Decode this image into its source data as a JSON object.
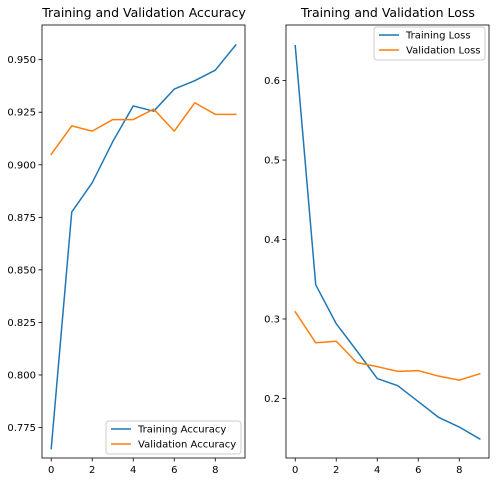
{
  "colors": {
    "training": "#1f77b4",
    "validation": "#ff7f0e",
    "axes": "#000000",
    "legend_border": "#cccccc"
  },
  "chart_data": [
    {
      "type": "line",
      "title": "Training and Validation Accuracy",
      "xlabel": "",
      "ylabel": "",
      "x": [
        0,
        1,
        2,
        3,
        4,
        5,
        6,
        7,
        8,
        9
      ],
      "xlim": [
        -0.45,
        9.45
      ],
      "ylim": [
        0.7605,
        0.9665
      ],
      "xticks": [
        0,
        2,
        4,
        6,
        8
      ],
      "xtick_labels": [
        "0",
        "2",
        "4",
        "6",
        "8"
      ],
      "yticks": [
        0.775,
        0.8,
        0.825,
        0.85,
        0.875,
        0.9,
        0.925,
        0.95
      ],
      "ytick_labels": [
        "0.775",
        "0.800",
        "0.825",
        "0.850",
        "0.875",
        "0.900",
        "0.925",
        "0.950"
      ],
      "legend_position": "lower right",
      "grid": false,
      "series": [
        {
          "name": "Training Accuracy",
          "color": "#1f77b4",
          "values": [
            0.765,
            0.8775,
            0.8915,
            0.911,
            0.928,
            0.9255,
            0.936,
            0.94,
            0.945,
            0.957
          ]
        },
        {
          "name": "Validation Accuracy",
          "color": "#ff7f0e",
          "values": [
            0.905,
            0.9185,
            0.916,
            0.9215,
            0.9215,
            0.9265,
            0.916,
            0.9295,
            0.924,
            0.924
          ]
        }
      ]
    },
    {
      "type": "line",
      "title": "Training and Validation Loss",
      "xlabel": "",
      "ylabel": "",
      "x": [
        0,
        1,
        2,
        3,
        4,
        5,
        6,
        7,
        8,
        9
      ],
      "xlim": [
        -0.45,
        9.45
      ],
      "ylim": [
        0.125,
        0.67
      ],
      "xticks": [
        0,
        2,
        4,
        6,
        8
      ],
      "xtick_labels": [
        "0",
        "2",
        "4",
        "6",
        "8"
      ],
      "yticks": [
        0.2,
        0.3,
        0.4,
        0.5,
        0.6
      ],
      "ytick_labels": [
        "0.2",
        "0.3",
        "0.4",
        "0.5",
        "0.6"
      ],
      "legend_position": "upper right",
      "grid": false,
      "series": [
        {
          "name": "Training Loss",
          "color": "#1f77b4",
          "values": [
            0.644,
            0.343,
            0.294,
            0.26,
            0.225,
            0.216,
            0.196,
            0.176,
            0.164,
            0.149
          ]
        },
        {
          "name": "Validation Loss",
          "color": "#ff7f0e",
          "values": [
            0.309,
            0.27,
            0.272,
            0.245,
            0.24,
            0.234,
            0.235,
            0.228,
            0.223,
            0.231
          ]
        }
      ]
    }
  ]
}
